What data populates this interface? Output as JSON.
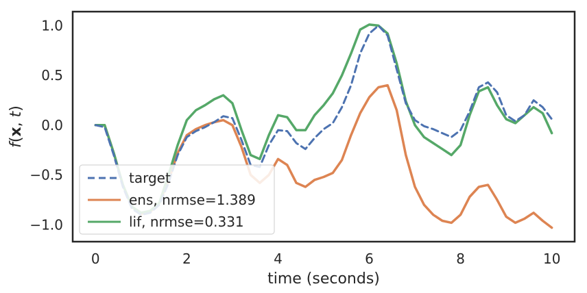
{
  "chart_data": {
    "type": "line",
    "title": "",
    "xlabel": "time (seconds)",
    "ylabel": "f(x, t)",
    "xlim": [
      -0.5,
      10.5
    ],
    "ylim": [
      -1.17,
      1.14
    ],
    "grid": false,
    "legend_position": "lower-left",
    "x_ticks": [
      0,
      2,
      4,
      6,
      8,
      10
    ],
    "x_tick_labels": [
      "0",
      "2",
      "4",
      "6",
      "8",
      "10"
    ],
    "y_ticks": [
      -1.0,
      -0.5,
      0.0,
      0.5,
      1.0
    ],
    "y_tick_labels": [
      "−1.0",
      "−0.5",
      "0.0",
      "0.5",
      "1.0"
    ],
    "series": [
      {
        "name": "target",
        "color": "#4c72b0",
        "style": "dashed",
        "x": [
          0,
          0.2,
          0.4,
          0.6,
          0.8,
          1.0,
          1.2,
          1.4,
          1.6,
          1.8,
          2.0,
          2.2,
          2.4,
          2.6,
          2.8,
          3.0,
          3.2,
          3.4,
          3.6,
          3.8,
          4.0,
          4.2,
          4.4,
          4.6,
          4.8,
          5.0,
          5.2,
          5.4,
          5.6,
          5.8,
          6.0,
          6.2,
          6.4,
          6.6,
          6.8,
          7.0,
          7.2,
          7.4,
          7.6,
          7.8,
          8.0,
          8.2,
          8.4,
          8.6,
          8.8,
          9.0,
          9.2,
          9.4,
          9.6,
          9.8,
          10.0
        ],
        "y": [
          0.0,
          -0.02,
          -0.3,
          -0.62,
          -0.84,
          -0.9,
          -0.88,
          -0.8,
          -0.58,
          -0.3,
          -0.12,
          -0.06,
          -0.02,
          0.03,
          0.09,
          0.07,
          -0.15,
          -0.4,
          -0.42,
          -0.2,
          -0.05,
          -0.06,
          -0.18,
          -0.24,
          -0.13,
          -0.04,
          0.02,
          0.18,
          0.4,
          0.72,
          0.92,
          1.0,
          0.9,
          0.56,
          0.22,
          0.05,
          -0.01,
          -0.04,
          -0.08,
          -0.12,
          -0.05,
          0.14,
          0.38,
          0.43,
          0.33,
          0.1,
          0.04,
          0.1,
          0.25,
          0.18,
          0.06
        ]
      },
      {
        "name": "ens, nrmse=1.389",
        "color": "#dd8452",
        "style": "solid",
        "x": [
          0,
          0.2,
          0.4,
          0.6,
          0.8,
          1.0,
          1.2,
          1.4,
          1.6,
          1.8,
          2.0,
          2.2,
          2.4,
          2.6,
          2.8,
          3.0,
          3.2,
          3.4,
          3.6,
          3.8,
          4.0,
          4.2,
          4.4,
          4.6,
          4.8,
          5.0,
          5.2,
          5.4,
          5.6,
          5.8,
          6.0,
          6.2,
          6.4,
          6.6,
          6.8,
          7.0,
          7.2,
          7.4,
          7.6,
          7.8,
          8.0,
          8.2,
          8.4,
          8.6,
          8.8,
          9.0,
          9.2,
          9.4,
          9.6,
          9.8,
          10.0
        ],
        "y": [
          0.0,
          0.0,
          -0.28,
          -0.6,
          -0.82,
          -0.89,
          -0.87,
          -0.78,
          -0.56,
          -0.28,
          -0.1,
          -0.04,
          0.0,
          0.03,
          0.05,
          0.0,
          -0.22,
          -0.5,
          -0.58,
          -0.5,
          -0.34,
          -0.4,
          -0.58,
          -0.62,
          -0.55,
          -0.52,
          -0.48,
          -0.35,
          -0.1,
          0.12,
          0.28,
          0.38,
          0.4,
          0.15,
          -0.3,
          -0.62,
          -0.8,
          -0.9,
          -0.96,
          -0.98,
          -0.9,
          -0.72,
          -0.62,
          -0.6,
          -0.75,
          -0.92,
          -0.98,
          -0.94,
          -0.88,
          -0.96,
          -1.03
        ]
      },
      {
        "name": "lif, nrmse=0.331",
        "color": "#55a868",
        "style": "solid",
        "x": [
          0,
          0.2,
          0.4,
          0.6,
          0.8,
          1.0,
          1.2,
          1.4,
          1.6,
          1.8,
          2.0,
          2.2,
          2.4,
          2.6,
          2.8,
          3.0,
          3.2,
          3.4,
          3.6,
          3.8,
          4.0,
          4.2,
          4.4,
          4.6,
          4.8,
          5.0,
          5.2,
          5.4,
          5.6,
          5.8,
          6.0,
          6.2,
          6.4,
          6.6,
          6.8,
          7.0,
          7.2,
          7.4,
          7.6,
          7.8,
          8.0,
          8.2,
          8.4,
          8.6,
          8.8,
          9.0,
          9.2,
          9.4,
          9.6,
          9.8,
          10.0
        ],
        "y": [
          0.0,
          0.0,
          -0.28,
          -0.6,
          -0.82,
          -0.88,
          -0.86,
          -0.78,
          -0.5,
          -0.2,
          0.05,
          0.15,
          0.2,
          0.26,
          0.3,
          0.22,
          -0.05,
          -0.3,
          -0.34,
          -0.1,
          0.1,
          0.08,
          -0.05,
          -0.05,
          0.1,
          0.2,
          0.32,
          0.5,
          0.72,
          0.96,
          1.01,
          1.0,
          0.92,
          0.62,
          0.24,
          0.0,
          -0.12,
          -0.18,
          -0.24,
          -0.3,
          -0.2,
          0.1,
          0.34,
          0.38,
          0.2,
          0.06,
          0.02,
          0.1,
          0.18,
          0.12,
          -0.08
        ]
      }
    ]
  }
}
